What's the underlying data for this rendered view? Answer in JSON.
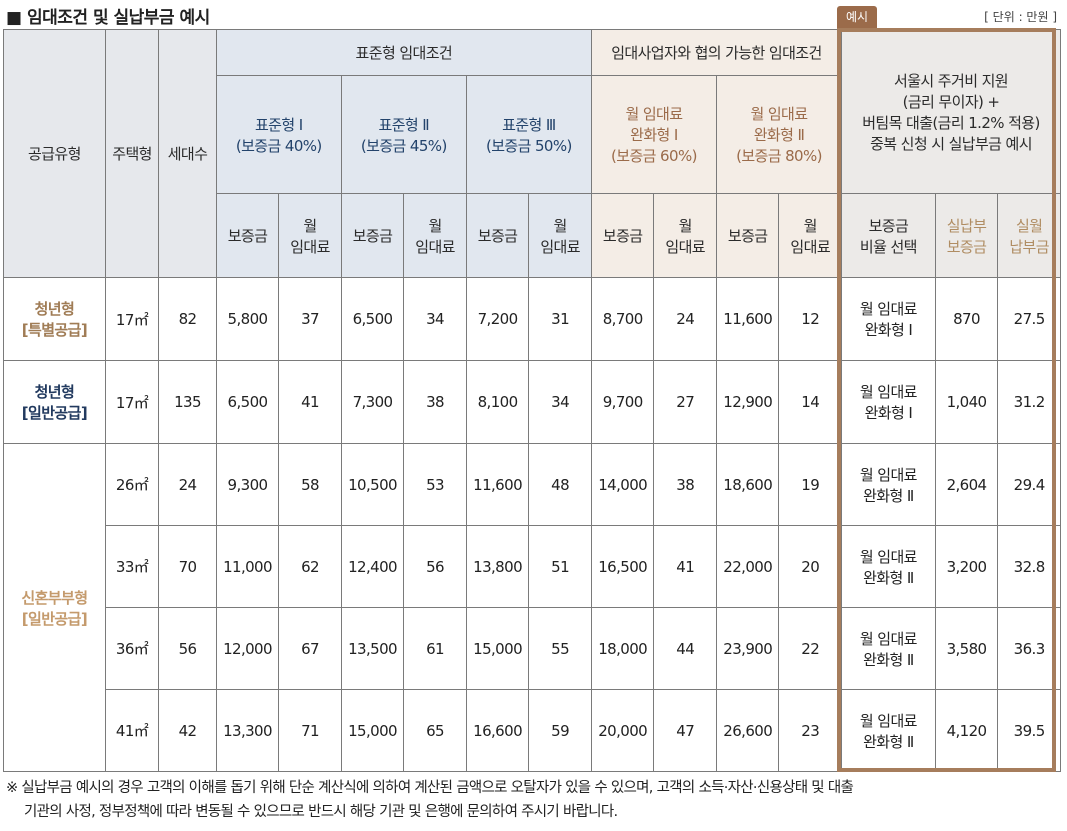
{
  "title": "■ 임대조건 및 실납부금 예시",
  "unit": "[ 단위 : 만원 ]",
  "tag": "예시",
  "headers": {
    "supply_type": "공급유형",
    "house_type": "주택형",
    "households": "세대수",
    "std_group": "표준형 임대조건",
    "neg_group": "임대사업자와 협의 가능한 임대조건",
    "ex_group_l1": "서울시 주거비 지원",
    "ex_group_l2": "(금리 무이자) +",
    "ex_group_l3": "버팀목 대출(금리 1.2% 적용)",
    "ex_group_l4": "중복 신청 시 실납부금 예시",
    "std1_l1": "표준형 Ⅰ",
    "std1_l2": "(보증금 40%)",
    "std2_l1": "표준형 Ⅱ",
    "std2_l2": "(보증금 45%)",
    "std3_l1": "표준형 Ⅲ",
    "std3_l2": "(보증금 50%)",
    "neg1_l1": "월 임대료",
    "neg1_l2": "완화형 Ⅰ",
    "neg1_l3": "(보증금 60%)",
    "neg2_l1": "월 임대료",
    "neg2_l2": "완화형 Ⅱ",
    "neg2_l3": "(보증금 80%)",
    "deposit": "보증금",
    "rent_l1": "월",
    "rent_l2": "임대료",
    "ratio_l1": "보증금",
    "ratio_l2": "비율 선택",
    "real_dep_l1": "실납부",
    "real_dep_l2": "보증금",
    "real_rent_l1": "실월",
    "real_rent_l2": "납부금"
  },
  "groups": {
    "youth_special_l1": "청년형",
    "youth_special_l2": "[특별공급]",
    "youth_general_l1": "청년형",
    "youth_general_l2": "[일반공급]",
    "newlywed_l1": "신혼부부형",
    "newlywed_l2": "[일반공급]"
  },
  "rows": [
    {
      "size": "17㎡",
      "hh": "82",
      "d1": "5,800",
      "r1": "37",
      "d2": "6,500",
      "r2": "34",
      "d3": "7,200",
      "r3": "31",
      "d4": "8,700",
      "r4": "24",
      "d5": "11,600",
      "r5": "12",
      "sel_l1": "월 임대료",
      "sel_l2": "완화형 Ⅰ",
      "rd": "870",
      "rr": "27.5"
    },
    {
      "size": "17㎡",
      "hh": "135",
      "d1": "6,500",
      "r1": "41",
      "d2": "7,300",
      "r2": "38",
      "d3": "8,100",
      "r3": "34",
      "d4": "9,700",
      "r4": "27",
      "d5": "12,900",
      "r5": "14",
      "sel_l1": "월 임대료",
      "sel_l2": "완화형 Ⅰ",
      "rd": "1,040",
      "rr": "31.2"
    },
    {
      "size": "26㎡",
      "hh": "24",
      "d1": "9,300",
      "r1": "58",
      "d2": "10,500",
      "r2": "53",
      "d3": "11,600",
      "r3": "48",
      "d4": "14,000",
      "r4": "38",
      "d5": "18,600",
      "r5": "19",
      "sel_l1": "월 임대료",
      "sel_l2": "완화형 Ⅱ",
      "rd": "2,604",
      "rr": "29.4"
    },
    {
      "size": "33㎡",
      "hh": "70",
      "d1": "11,000",
      "r1": "62",
      "d2": "12,400",
      "r2": "56",
      "d3": "13,800",
      "r3": "51",
      "d4": "16,500",
      "r4": "41",
      "d5": "22,000",
      "r5": "20",
      "sel_l1": "월 임대료",
      "sel_l2": "완화형 Ⅱ",
      "rd": "3,200",
      "rr": "32.8"
    },
    {
      "size": "36㎡",
      "hh": "56",
      "d1": "12,000",
      "r1": "67",
      "d2": "13,500",
      "r2": "61",
      "d3": "15,000",
      "r3": "55",
      "d4": "18,000",
      "r4": "44",
      "d5": "23,900",
      "r5": "22",
      "sel_l1": "월 임대료",
      "sel_l2": "완화형 Ⅱ",
      "rd": "3,580",
      "rr": "36.3"
    },
    {
      "size": "41㎡",
      "hh": "42",
      "d1": "13,300",
      "r1": "71",
      "d2": "15,000",
      "r2": "65",
      "d3": "16,600",
      "r3": "59",
      "d4": "20,000",
      "r4": "47",
      "d5": "26,600",
      "r5": "23",
      "sel_l1": "월 임대료",
      "sel_l2": "완화형 Ⅱ",
      "rd": "4,120",
      "rr": "39.5"
    }
  ],
  "note_l1": "※ 실납부금 예시의 경우 고객의 이해를 돕기 위해 단순 계산식에 의하여 계산된 금액으로 오탈자가 있을 수 있으며, 고객의 소득·자산·신용상태 및 대출",
  "note_l2": "기관의 사정, 정부정책에 따라 변동될 수 있으므로 반드시 해당 기관 및 은행에 문의하여 주시기 바랍니다."
}
